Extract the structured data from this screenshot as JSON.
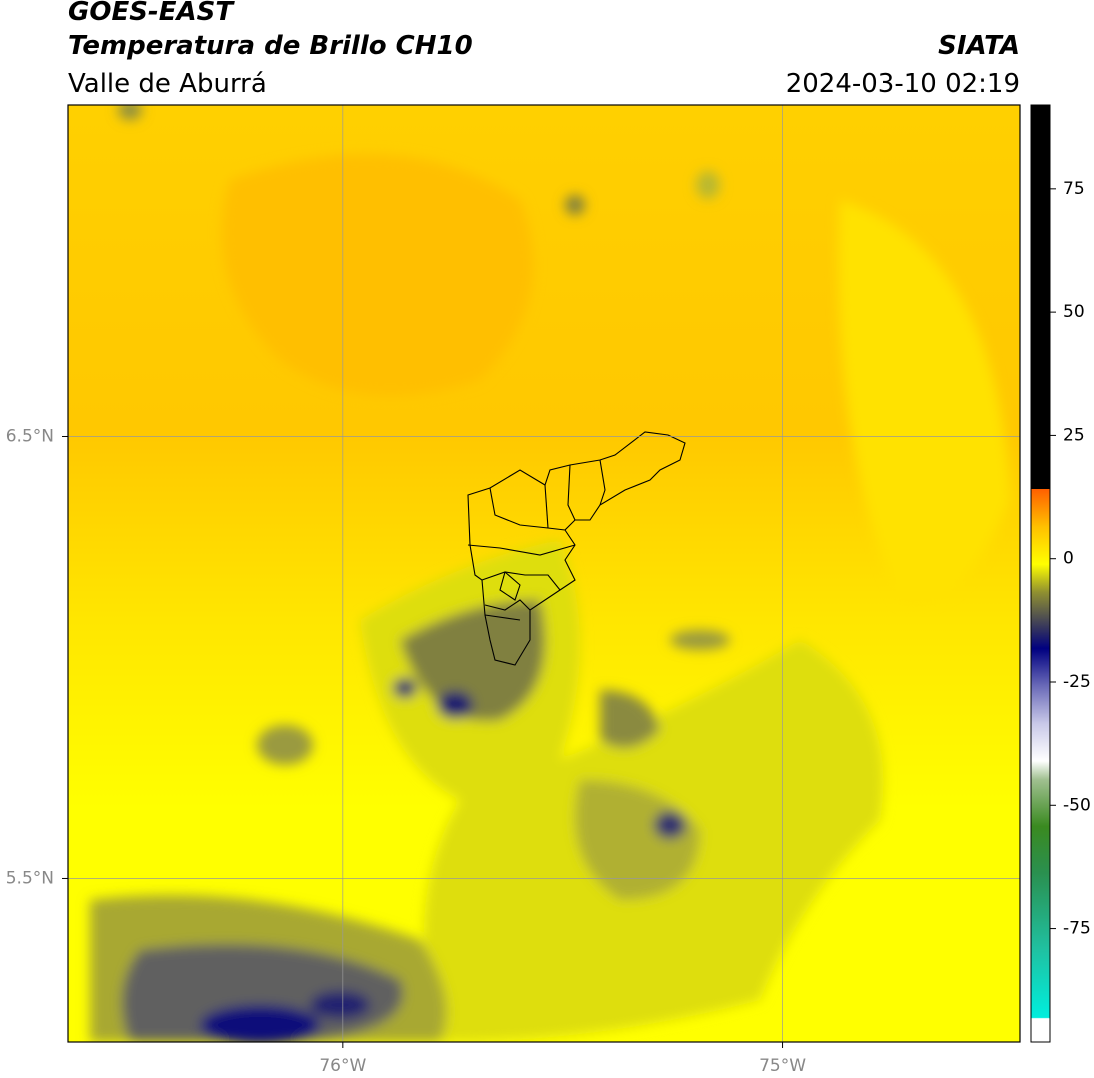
{
  "header": {
    "satellite": "GOES-EAST",
    "product": "Temperatura de Brillo CH10",
    "region": "Valle de Aburrá",
    "source": "SIATA",
    "datetime": "2024-03-10 02:19"
  },
  "map": {
    "xlim": [
      -76.625,
      -74.46
    ],
    "ylim": [
      5.13,
      7.25
    ],
    "xticks": [
      {
        "value": -76,
        "label": "76°W"
      },
      {
        "value": -75,
        "label": "75°W"
      }
    ],
    "yticks": [
      {
        "value": 6.5,
        "label": "6.5°N"
      },
      {
        "value": 5.5,
        "label": "5.5°N"
      }
    ],
    "grid": true
  },
  "colorbar": {
    "lim": [
      -98,
      92
    ],
    "ticks": [
      75,
      50,
      25,
      0,
      -25,
      -50,
      -75
    ]
  }
}
